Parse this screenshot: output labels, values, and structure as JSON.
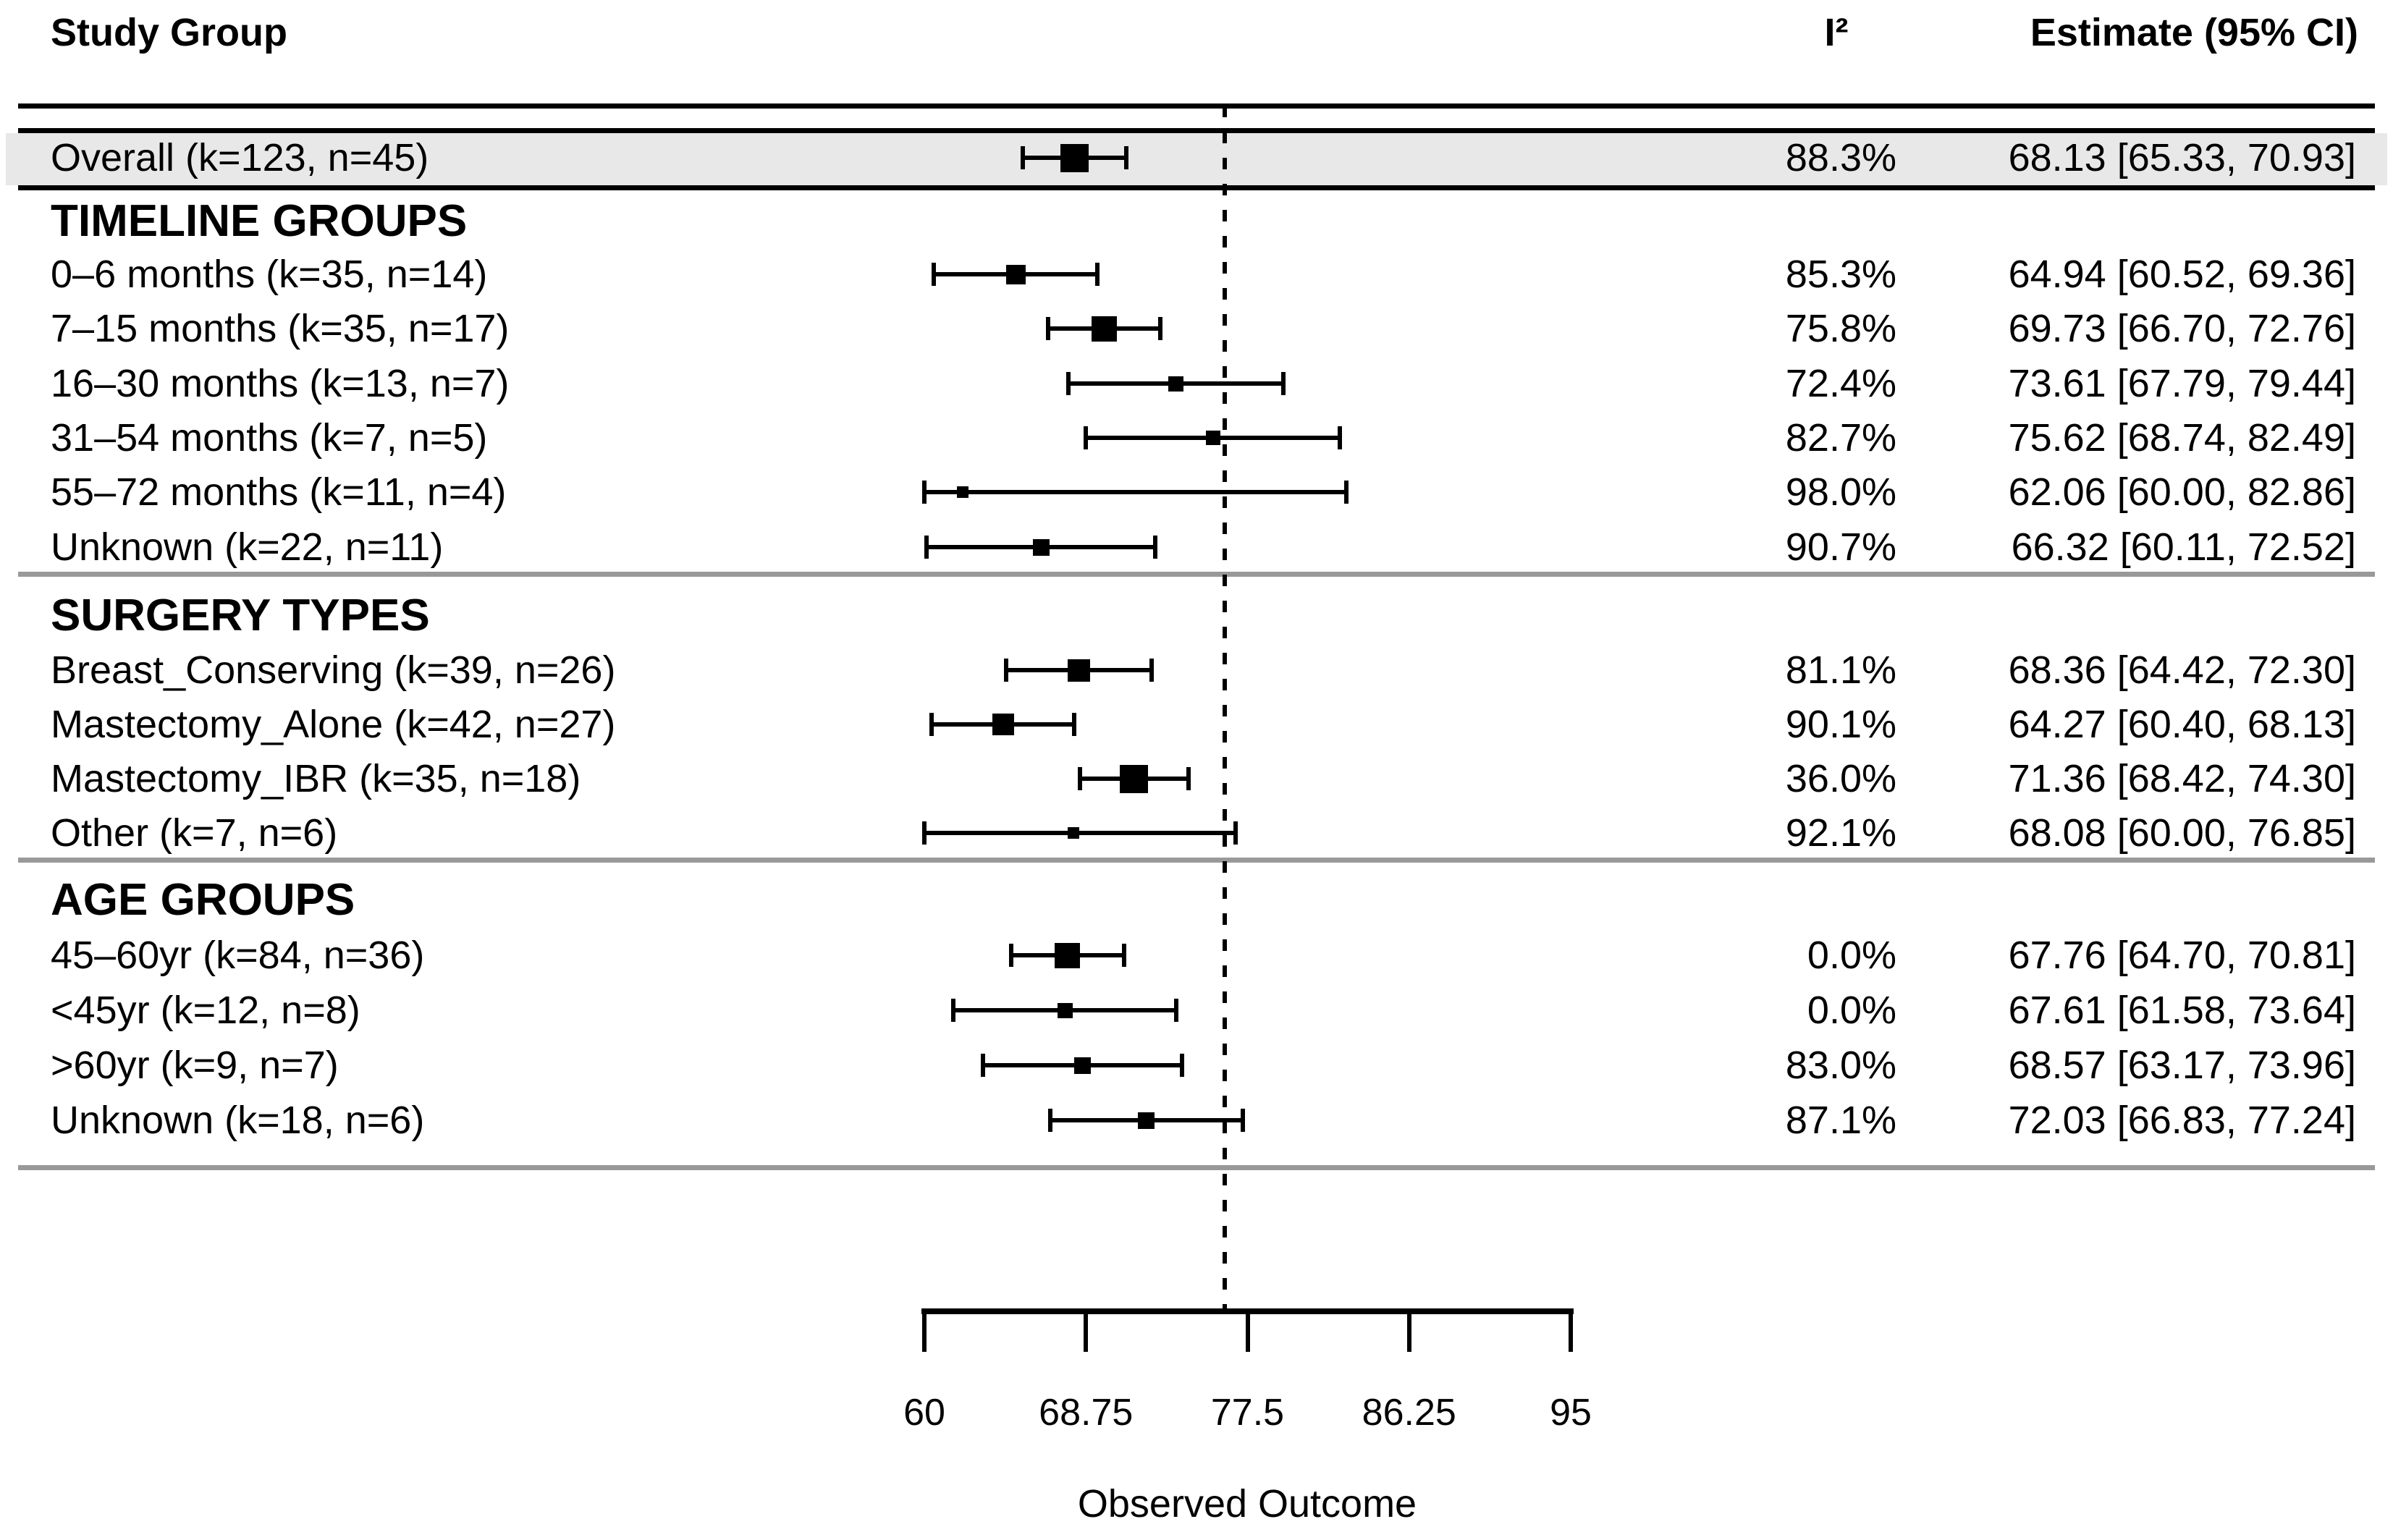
{
  "header": {
    "study_group": "Study Group",
    "i2": "I²",
    "estimate": "Estimate (95% CI)"
  },
  "colors": {
    "background": "#ffffff",
    "text": "#000000",
    "band_fill": "#e8e8e8",
    "rule": "#000000",
    "divider": "#999999",
    "marker": "#000000"
  },
  "chart_data": {
    "type": "forest",
    "xlabel": "Observed Outcome",
    "xlim": [
      60,
      95
    ],
    "x_ticks": [
      60,
      68.75,
      77.5,
      86.25,
      95
    ],
    "x_tick_labels": [
      "60",
      "68.75",
      "77.5",
      "86.25",
      "95"
    ],
    "reference_line": 76.25,
    "overall": {
      "label": "Overall (k=123, n=45)",
      "i2": "88.3%",
      "estimate_text": "68.13 [65.33, 70.93]",
      "est": 68.13,
      "lo": 65.33,
      "hi": 70.93,
      "marker_size": 39
    },
    "sections": [
      {
        "title": "TIMELINE GROUPS",
        "rows": [
          {
            "label": "0–6 months (k=35, n=14)",
            "i2": "85.3%",
            "estimate_text": "64.94 [60.52, 69.36]",
            "est": 64.94,
            "lo": 60.52,
            "hi": 69.36,
            "marker_size": 27
          },
          {
            "label": "7–15 months (k=35, n=17)",
            "i2": "75.8%",
            "estimate_text": "69.73 [66.70, 72.76]",
            "est": 69.73,
            "lo": 66.7,
            "hi": 72.76,
            "marker_size": 35
          },
          {
            "label": "16–30 months (k=13, n=7)",
            "i2": "72.4%",
            "estimate_text": "73.61 [67.79, 79.44]",
            "est": 73.61,
            "lo": 67.79,
            "hi": 79.44,
            "marker_size": 21
          },
          {
            "label": "31–54 months (k=7, n=5)",
            "i2": "82.7%",
            "estimate_text": "75.62 [68.74, 82.49]",
            "est": 75.62,
            "lo": 68.74,
            "hi": 82.49,
            "marker_size": 20
          },
          {
            "label": "55–72 months (k=11, n=4)",
            "i2": "98.0%",
            "estimate_text": "62.06 [60.00, 82.86]",
            "est": 62.06,
            "lo": 60.0,
            "hi": 82.86,
            "marker_size": 16
          },
          {
            "label": "Unknown (k=22, n=11)",
            "i2": "90.7%",
            "estimate_text": "66.32 [60.11, 72.52]",
            "est": 66.32,
            "lo": 60.11,
            "hi": 72.52,
            "marker_size": 23
          }
        ]
      },
      {
        "title": "SURGERY TYPES",
        "rows": [
          {
            "label": "Breast_Conserving (k=39, n=26)",
            "i2": "81.1%",
            "estimate_text": "68.36 [64.42, 72.30]",
            "est": 68.36,
            "lo": 64.42,
            "hi": 72.3,
            "marker_size": 31
          },
          {
            "label": "Mastectomy_Alone (k=42, n=27)",
            "i2": "90.1%",
            "estimate_text": "64.27 [60.40, 68.13]",
            "est": 64.27,
            "lo": 60.4,
            "hi": 68.13,
            "marker_size": 30
          },
          {
            "label": "Mastectomy_IBR (k=35, n=18)",
            "i2": "36.0%",
            "estimate_text": "71.36 [68.42, 74.30]",
            "est": 71.36,
            "lo": 68.42,
            "hi": 74.3,
            "marker_size": 39
          },
          {
            "label": "Other (k=7, n=6)",
            "i2": "92.1%",
            "estimate_text": "68.08 [60.00, 76.85]",
            "est": 68.08,
            "lo": 60.0,
            "hi": 76.85,
            "marker_size": 16
          }
        ]
      },
      {
        "title": "AGE GROUPS",
        "rows": [
          {
            "label": "45–60yr (k=84, n=36)",
            "i2": "0.0%",
            "estimate_text": "67.76 [64.70, 70.81]",
            "est": 67.76,
            "lo": 64.7,
            "hi": 70.81,
            "marker_size": 35
          },
          {
            "label": "<45yr (k=12, n=8)",
            "i2": "0.0%",
            "estimate_text": "67.61 [61.58, 73.64]",
            "est": 67.61,
            "lo": 61.58,
            "hi": 73.64,
            "marker_size": 21
          },
          {
            "label": ">60yr (k=9, n=7)",
            "i2": "83.0%",
            "estimate_text": "68.57 [63.17, 73.96]",
            "est": 68.57,
            "lo": 63.17,
            "hi": 73.96,
            "marker_size": 23
          },
          {
            "label": "Unknown (k=18, n=6)",
            "i2": "87.1%",
            "estimate_text": "72.03 [66.83, 77.24]",
            "est": 72.03,
            "lo": 66.83,
            "hi": 77.24,
            "marker_size": 23
          }
        ]
      }
    ]
  }
}
